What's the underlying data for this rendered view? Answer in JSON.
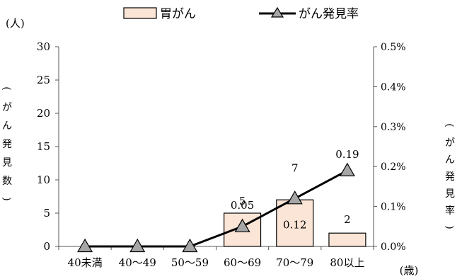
{
  "chart_data": {
    "type": "bar+line",
    "categories": [
      "40未満",
      "40〜49",
      "50〜59",
      "60〜69",
      "70〜79",
      "80以上"
    ],
    "series": [
      {
        "name": "胃がん",
        "type": "bar",
        "axis": "left",
        "values": [
          0,
          0,
          0,
          5,
          7,
          2
        ],
        "data_labels": [
          "",
          "",
          "",
          "5",
          "7",
          "2"
        ],
        "color": "#fbe5d6"
      },
      {
        "name": "がん発見率",
        "type": "line",
        "axis": "right",
        "values": [
          0,
          0,
          0,
          0.05,
          0.12,
          0.19
        ],
        "data_labels": [
          "",
          "",
          "",
          "0.05",
          "0.12",
          "0.19"
        ],
        "color": "#000000",
        "marker": "triangle",
        "marker_color": "#a6a6a6"
      }
    ],
    "y_left": {
      "unit": "(人)",
      "label": "(がん発見数)",
      "ylim": [
        0,
        30
      ],
      "ticks": [
        "0",
        "5",
        "10",
        "15",
        "20",
        "25",
        "30"
      ]
    },
    "y_right": {
      "label": "(がん発見率)",
      "ylim": [
        0,
        0.5
      ],
      "ticks": [
        "0.0%",
        "0.1%",
        "0.2%",
        "0.3%",
        "0.4%",
        "0.5%"
      ]
    },
    "x_unit": "(歳)",
    "legend": {
      "position": "top"
    },
    "grid": false
  }
}
